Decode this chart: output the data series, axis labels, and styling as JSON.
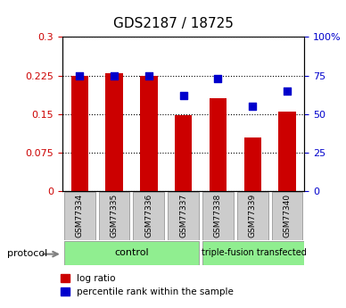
{
  "title": "GDS2187 / 18725",
  "samples": [
    "GSM77334",
    "GSM77335",
    "GSM77336",
    "GSM77337",
    "GSM77338",
    "GSM77339",
    "GSM77340"
  ],
  "log_ratio": [
    0.225,
    0.23,
    0.225,
    0.147,
    0.18,
    0.105,
    0.155
  ],
  "percentile_rank": [
    75,
    75,
    75,
    62,
    73,
    55,
    65
  ],
  "bar_color": "#CC0000",
  "dot_color": "#0000CC",
  "left_yticks": [
    0,
    0.075,
    0.15,
    0.225,
    0.3
  ],
  "right_yticks": [
    0,
    25,
    50,
    75,
    100
  ],
  "left_ylabel_color": "#CC0000",
  "right_ylabel_color": "#0000CC",
  "tick_bg": "#CCCCCC",
  "protocol_label": "protocol",
  "legend_items": [
    "log ratio",
    "percentile rank within the sample"
  ],
  "bar_width": 0.5,
  "ctrl_group_label": "control",
  "tf_group_label": "triple-fusion transfected",
  "group_color": "#90EE90"
}
